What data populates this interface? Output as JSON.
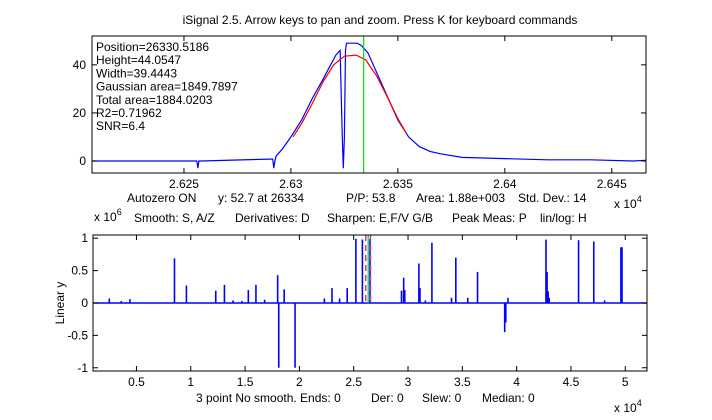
{
  "window": {
    "title": "iSignal 2.5. Arrow keys to pan and zoom. Press K for keyboard commands"
  },
  "top_panel": {
    "info_lines": [
      "Position=26330.5186",
      "Height=44.0547",
      "Width=39.4443",
      "Gaussian area=1849.7897",
      "Total area=1884.0203",
      "R2=0.71962",
      "SNR=6.4"
    ],
    "status_line": {
      "autozero": "Autozero ON",
      "y_at": "y: 52.7 at 26334",
      "pp": "P/P: 53.8",
      "area": "Area: 1.88e+003",
      "std": "Std. Dev.: 14"
    },
    "x_exponent": "x 10",
    "x_exponent_power": "4"
  },
  "bottom_panel": {
    "y_exponent": "x 10",
    "y_exponent_power": "6",
    "hint_line": {
      "smooth": "Smooth: S, A/Z",
      "derivatives": "Derivatives: D",
      "sharpen": "Sharpen: E,F/V G/B",
      "peak": "Peak Meas: P",
      "linlog": "lin/log: H"
    },
    "status_line": {
      "smooth": "3 point No smooth. Ends: 0",
      "der": "Der: 0",
      "slew": "Slew: 0",
      "median": "Median: 0"
    },
    "x_exponent": "x 10",
    "x_exponent_power": "4"
  },
  "colors": {
    "signal": "#0000ff",
    "fit": "#ff0000",
    "cursor": "#00e000",
    "window_marker": "#cc33cc"
  },
  "chart_data": [
    {
      "type": "line",
      "name": "zoomed-signal",
      "xlabel": "",
      "ylabel": "",
      "xlim": [
        2.6207,
        2.6466
      ],
      "ylim": [
        -5,
        52
      ],
      "x_scale_note": "x 10^4",
      "xticks": [
        2.625,
        2.63,
        2.635,
        2.64,
        2.645
      ],
      "xtick_labels": [
        "2.625",
        "2.63",
        "2.635",
        "2.64",
        "2.645"
      ],
      "yticks": [
        0,
        20,
        40
      ],
      "ytick_labels": [
        "0",
        "20",
        "40"
      ],
      "cursor_x": 2.6334,
      "series": [
        {
          "name": "signal",
          "x": [
            2.6207,
            2.6255,
            2.6256,
            2.62565,
            2.6257,
            2.6258,
            2.629,
            2.62915,
            2.6292,
            2.62925,
            2.6293,
            2.6294,
            2.6296,
            2.63,
            2.6305,
            2.631,
            2.6315,
            2.6318,
            2.6321,
            2.6323,
            2.6324,
            2.63245,
            2.6325,
            2.63255,
            2.6326,
            2.6328,
            2.6331,
            2.6333,
            2.6336,
            2.634,
            2.6345,
            2.635,
            2.6355,
            2.636,
            2.6365,
            2.637,
            2.638,
            2.64,
            2.642,
            2.644,
            2.646,
            2.6466
          ],
          "y": [
            0,
            0,
            0,
            -3,
            0,
            0,
            0.8,
            0.8,
            -3,
            0,
            2,
            3,
            5,
            10,
            17,
            26,
            34,
            39,
            44,
            46,
            10,
            -3,
            10,
            46,
            49,
            49,
            49,
            48,
            45,
            37,
            27,
            17,
            10,
            6,
            4,
            3,
            1.5,
            1,
            0.5,
            0.5,
            0,
            0.3
          ]
        },
        {
          "name": "gaussian-fit",
          "x": [
            2.6301,
            2.6305,
            2.631,
            2.6315,
            2.632,
            2.6325,
            2.63305,
            2.6335,
            2.634,
            2.6345,
            2.635,
            2.6354
          ],
          "y": [
            10.0,
            15.5,
            23.9,
            32.9,
            40.0,
            43.6,
            44.05,
            42.0,
            35.5,
            26.7,
            17.6,
            11.5
          ]
        }
      ]
    },
    {
      "type": "bar",
      "name": "full-signal",
      "xlabel": "",
      "ylabel": "Linear y",
      "xlim": [
        0.1,
        5.2
      ],
      "ylim": [
        -1.05,
        1.05
      ],
      "x_scale_note": "x 10^4",
      "y_scale_note": "x 10^6",
      "xticks": [
        0.5,
        1,
        1.5,
        2,
        2.5,
        3,
        3.5,
        4,
        4.5,
        5
      ],
      "xtick_labels": [
        "0.5",
        "1",
        "1.5",
        "2",
        "2.5",
        "3",
        "3.5",
        "4",
        "4.5",
        "5"
      ],
      "yticks": [
        -1,
        -0.5,
        0,
        0.5,
        1
      ],
      "ytick_labels": [
        "-1",
        "-0.5",
        "0",
        "0.5",
        "1"
      ],
      "cursor_x": 2.6334,
      "window_markers_x": [
        2.611,
        2.655
      ],
      "spikes": {
        "x": [
          0.25,
          0.36,
          0.44,
          0.85,
          0.96,
          1.23,
          1.31,
          1.39,
          1.47,
          1.53,
          1.6,
          1.68,
          1.8,
          1.81,
          1.86,
          1.96,
          2.23,
          2.3,
          2.37,
          2.44,
          2.52,
          2.58,
          2.65,
          2.94,
          2.96,
          2.97,
          3.1,
          3.11,
          3.16,
          3.22,
          3.4,
          3.44,
          3.55,
          3.64,
          3.89,
          3.9,
          3.92,
          4.27,
          4.28,
          4.29,
          4.3,
          4.57,
          4.71,
          4.81,
          4.96,
          4.97
        ],
        "y": [
          0.07,
          0.03,
          0.06,
          0.69,
          0.27,
          0.19,
          0.28,
          0.04,
          0.03,
          0.2,
          0.28,
          0.05,
          0.43,
          -1.0,
          0.21,
          -1.0,
          0.07,
          0.23,
          0.07,
          0.23,
          0.99,
          0.98,
          0.99,
          0.19,
          0.39,
          0.2,
          0.61,
          0.23,
          0.04,
          0.93,
          0.08,
          0.7,
          0.08,
          0.48,
          -0.45,
          -0.3,
          0.08,
          0.98,
          0.48,
          0.18,
          0.08,
          0.97,
          0.95,
          0.04,
          0.86,
          0.86
        ]
      }
    }
  ]
}
